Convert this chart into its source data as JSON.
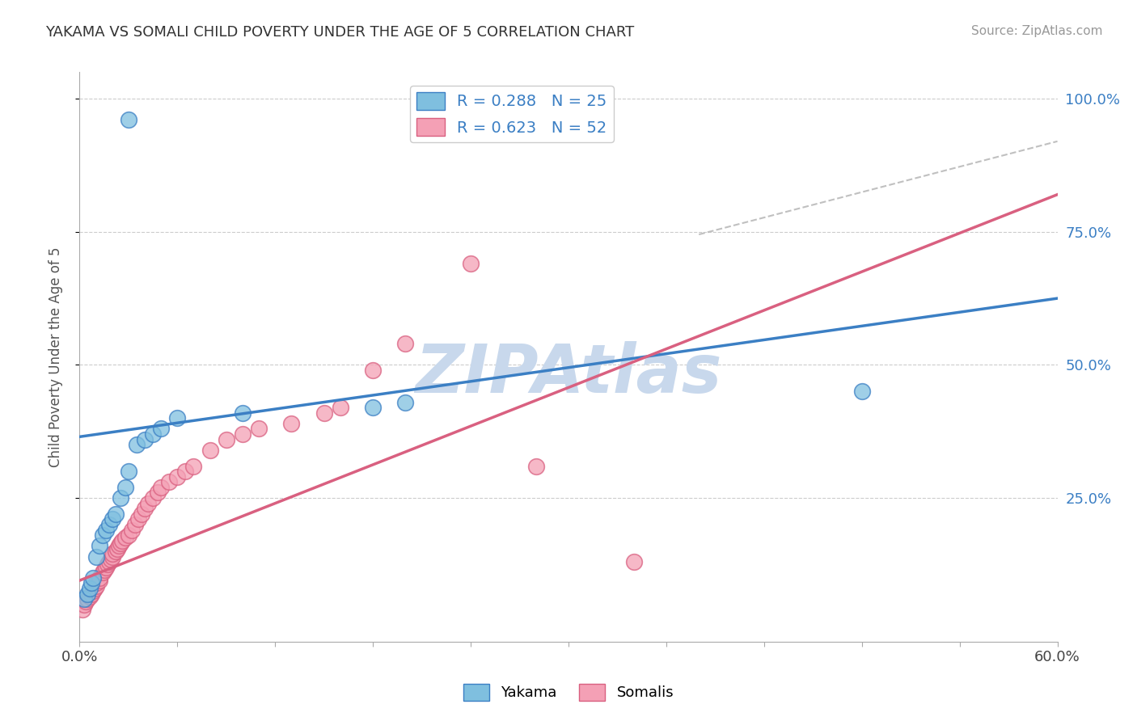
{
  "title": "YAKAMA VS SOMALI CHILD POVERTY UNDER THE AGE OF 5 CORRELATION CHART",
  "source_text": "Source: ZipAtlas.com",
  "ylabel": "Child Poverty Under the Age of 5",
  "watermark": "ZIPAtlas",
  "xlim": [
    0.0,
    0.6
  ],
  "ylim": [
    -0.02,
    1.05
  ],
  "x_ticks": [
    0.0,
    0.06,
    0.12,
    0.18,
    0.24,
    0.3,
    0.36,
    0.42,
    0.48,
    0.54,
    0.6
  ],
  "y_ticks_right": [
    0.25,
    0.5,
    0.75,
    1.0
  ],
  "y_tick_labels_right": [
    "25.0%",
    "50.0%",
    "75.0%",
    "100.0%"
  ],
  "legend_blue_text": "R = 0.288   N = 25",
  "legend_pink_text": "R = 0.623   N = 52",
  "blue_color": "#7fbfdf",
  "pink_color": "#f4a0b5",
  "trend_blue_color": "#3b7fc4",
  "trend_pink_color": "#d96080",
  "trend_gray_color": "#c0c0c0",
  "background_color": "#ffffff",
  "grid_color": "#cccccc",
  "title_color": "#333333",
  "source_color": "#999999",
  "watermark_color": "#c8d8ec",
  "yakama_x": [
    0.003,
    0.005,
    0.006,
    0.007,
    0.008,
    0.01,
    0.012,
    0.014,
    0.016,
    0.018,
    0.02,
    0.022,
    0.025,
    0.028,
    0.03,
    0.035,
    0.04,
    0.045,
    0.05,
    0.06,
    0.1,
    0.18,
    0.2,
    0.48,
    0.03
  ],
  "yakama_y": [
    0.06,
    0.07,
    0.08,
    0.09,
    0.1,
    0.14,
    0.16,
    0.18,
    0.19,
    0.2,
    0.21,
    0.22,
    0.25,
    0.27,
    0.3,
    0.35,
    0.36,
    0.37,
    0.38,
    0.4,
    0.41,
    0.42,
    0.43,
    0.45,
    0.96
  ],
  "somali_x": [
    0.002,
    0.003,
    0.004,
    0.005,
    0.006,
    0.007,
    0.008,
    0.009,
    0.01,
    0.01,
    0.012,
    0.012,
    0.014,
    0.015,
    0.016,
    0.017,
    0.018,
    0.019,
    0.02,
    0.02,
    0.022,
    0.023,
    0.024,
    0.025,
    0.026,
    0.028,
    0.03,
    0.032,
    0.034,
    0.036,
    0.038,
    0.04,
    0.042,
    0.045,
    0.048,
    0.05,
    0.055,
    0.06,
    0.065,
    0.07,
    0.08,
    0.09,
    0.1,
    0.11,
    0.13,
    0.15,
    0.16,
    0.18,
    0.2,
    0.24,
    0.28,
    0.34
  ],
  "somali_y": [
    0.04,
    0.05,
    0.055,
    0.06,
    0.065,
    0.07,
    0.075,
    0.08,
    0.085,
    0.09,
    0.095,
    0.1,
    0.11,
    0.115,
    0.12,
    0.125,
    0.13,
    0.135,
    0.14,
    0.145,
    0.15,
    0.155,
    0.16,
    0.165,
    0.17,
    0.175,
    0.18,
    0.19,
    0.2,
    0.21,
    0.22,
    0.23,
    0.24,
    0.25,
    0.26,
    0.27,
    0.28,
    0.29,
    0.3,
    0.31,
    0.34,
    0.36,
    0.37,
    0.38,
    0.39,
    0.41,
    0.42,
    0.49,
    0.54,
    0.69,
    0.31,
    0.13
  ],
  "blue_trend_x": [
    0.0,
    0.6
  ],
  "blue_trend_y": [
    0.365,
    0.625
  ],
  "pink_trend_x": [
    0.0,
    0.6
  ],
  "pink_trend_y": [
    0.095,
    0.82
  ],
  "gray_trend_x": [
    0.38,
    0.6
  ],
  "gray_trend_y": [
    0.745,
    0.92
  ]
}
